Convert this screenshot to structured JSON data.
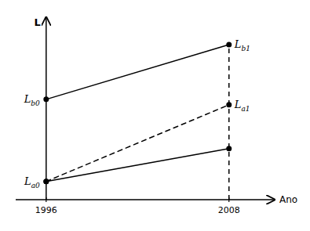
{
  "chart_data": {
    "type": "line",
    "x": [
      1996,
      2008
    ],
    "xlim": [
      1994,
      2011
    ],
    "ylim": [
      0,
      10
    ],
    "xticks": [
      1996,
      2008
    ],
    "yticks": [],
    "tick_labels": "x",
    "x_label": "Ano",
    "y_label": "L",
    "color": "black",
    "series": [
      {
        "values": [
          5.5,
          8.5
        ],
        "line_style": "solid",
        "marker": "circle"
      },
      {
        "values": [
          1.0,
          2.8
        ],
        "line_style": "solid",
        "marker": "circle"
      },
      {
        "values": [
          1.0,
          5.2
        ],
        "line_style": "dashed",
        "marker": "circle"
      }
    ],
    "reference_lines": [
      {
        "x": 2008,
        "y": [
          0,
          8.5
        ],
        "line_style": "dashed"
      }
    ],
    "annotations": [
      {
        "label": "L",
        "subscript": "a0",
        "x": 1996,
        "y": 1.0
      },
      {
        "label": "L",
        "subscript": "b0",
        "x": 1996,
        "y": 5.5
      },
      {
        "label": "L",
        "subscript": "b1",
        "x": 2008,
        "y": 8.5
      },
      {
        "label": "L",
        "subscript": "a1",
        "x": 2008,
        "y": 5.2
      }
    ]
  }
}
